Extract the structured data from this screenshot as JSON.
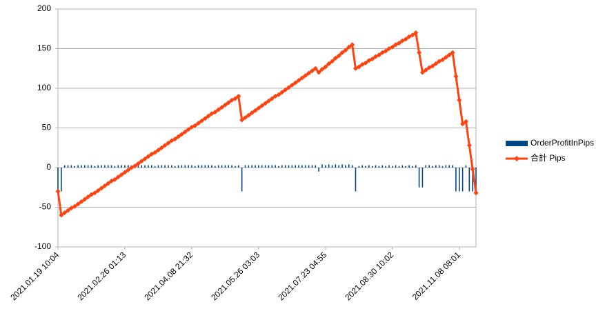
{
  "chart_data": {
    "type": "combo",
    "categories": [
      "2021.01.19 10:04",
      null,
      null,
      null,
      null,
      null,
      null,
      null,
      null,
      null,
      null,
      null,
      null,
      null,
      null,
      null,
      null,
      null,
      null,
      null,
      "2021.02.26 01:13",
      null,
      null,
      null,
      null,
      null,
      null,
      null,
      null,
      null,
      null,
      null,
      null,
      null,
      null,
      null,
      null,
      null,
      null,
      null,
      "2021.04.08 21:32",
      null,
      null,
      null,
      null,
      null,
      null,
      null,
      null,
      null,
      null,
      null,
      null,
      null,
      null,
      null,
      null,
      null,
      null,
      null,
      "2021.05.26 03:03",
      null,
      null,
      null,
      null,
      null,
      null,
      null,
      null,
      null,
      null,
      null,
      null,
      null,
      null,
      null,
      null,
      null,
      null,
      null,
      "2021.07.23 04:55",
      null,
      null,
      null,
      null,
      null,
      null,
      null,
      null,
      null,
      null,
      null,
      null,
      null,
      null,
      null,
      null,
      null,
      null,
      null,
      "2021.08.30 10:02",
      null,
      null,
      null,
      null,
      null,
      null,
      null,
      null,
      null,
      null,
      null,
      null,
      null,
      null,
      null,
      null,
      null,
      null,
      null,
      "2021.11.08 08:01",
      null,
      null,
      null,
      null,
      null
    ],
    "series": [
      {
        "name": "OrderProfitInPips",
        "type": "bar",
        "color": "#004586",
        "values": [
          -30,
          -30,
          3,
          3,
          3,
          2,
          3,
          3,
          3,
          3,
          3,
          2,
          3,
          3,
          3,
          3,
          3,
          2,
          3,
          3,
          3,
          3,
          3,
          2,
          3,
          3,
          3,
          3,
          3,
          2,
          3,
          3,
          3,
          3,
          3,
          2,
          3,
          3,
          3,
          3,
          3,
          2,
          3,
          3,
          3,
          3,
          3,
          2,
          3,
          3,
          3,
          3,
          3,
          2,
          3,
          -30,
          3,
          3,
          3,
          3,
          3,
          3,
          3,
          3,
          3,
          3,
          2,
          3,
          3,
          3,
          3,
          3,
          3,
          3,
          3,
          3,
          3,
          3,
          -5,
          4,
          3,
          4,
          3,
          4,
          3,
          4,
          3,
          4,
          3,
          -30,
          2,
          3,
          2,
          3,
          2,
          3,
          2,
          3,
          2,
          3,
          2,
          3,
          2,
          3,
          2,
          3,
          2,
          3,
          -25,
          -25,
          3,
          3,
          2,
          3,
          3,
          2,
          3,
          3,
          3,
          -30,
          -30,
          -30,
          3,
          -30,
          -30,
          -30
        ]
      },
      {
        "name": "合計 Pips",
        "type": "line",
        "color": "#ff420e",
        "values": [
          -30,
          -60,
          -57,
          -54,
          -51,
          -49,
          -46,
          -43,
          -40,
          -37,
          -34,
          -32,
          -29,
          -26,
          -23,
          -20,
          -17,
          -15,
          -12,
          -9,
          -6,
          -3,
          0,
          2,
          5,
          8,
          11,
          14,
          17,
          19,
          22,
          25,
          28,
          31,
          34,
          36,
          39,
          42,
          45,
          48,
          51,
          53,
          56,
          59,
          62,
          65,
          68,
          70,
          73,
          76,
          79,
          82,
          85,
          87,
          90,
          60,
          63,
          66,
          69,
          72,
          75,
          78,
          81,
          84,
          87,
          90,
          92,
          95,
          98,
          101,
          104,
          107,
          110,
          113,
          116,
          119,
          122,
          125,
          120,
          124,
          127,
          131,
          134,
          138,
          141,
          145,
          148,
          152,
          155,
          125,
          127,
          130,
          132,
          135,
          137,
          140,
          142,
          145,
          147,
          150,
          152,
          155,
          157,
          160,
          162,
          165,
          167,
          170,
          145,
          120,
          123,
          126,
          128,
          131,
          134,
          136,
          139,
          142,
          145,
          115,
          85,
          55,
          58,
          28,
          -2,
          -32
        ]
      }
    ],
    "ylim": [
      -100,
      200
    ],
    "yticks": [
      -100,
      -50,
      0,
      50,
      100,
      150,
      200
    ],
    "grid": true,
    "legend": "right"
  }
}
